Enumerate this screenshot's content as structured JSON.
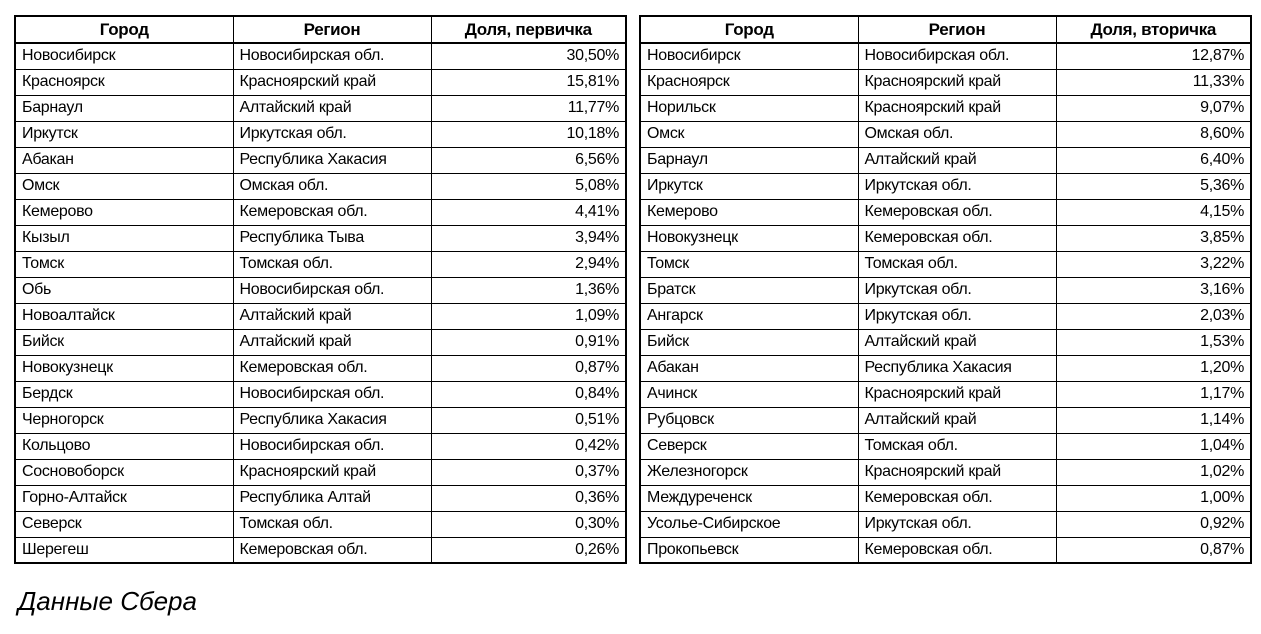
{
  "colors": {
    "background": "#ffffff",
    "text": "#000000",
    "border": "#000000"
  },
  "footer": {
    "source_note": "Данные Сбера"
  },
  "chart_data": [
    {
      "type": "table",
      "title": "Доля, первичка",
      "columns": [
        "Город",
        "Регион",
        "Доля, первичка"
      ],
      "rows": [
        [
          "Новосибирск",
          "Новосибирская обл.",
          "30,50%"
        ],
        [
          "Красноярск",
          "Красноярский край",
          "15,81%"
        ],
        [
          "Барнаул",
          "Алтайский край",
          "11,77%"
        ],
        [
          "Иркутск",
          "Иркутская обл.",
          "10,18%"
        ],
        [
          "Абакан",
          "Республика Хакасия",
          "6,56%"
        ],
        [
          "Омск",
          "Омская обл.",
          "5,08%"
        ],
        [
          "Кемерово",
          "Кемеровская обл.",
          "4,41%"
        ],
        [
          "Кызыл",
          "Республика Тыва",
          "3,94%"
        ],
        [
          "Томск",
          "Томская обл.",
          "2,94%"
        ],
        [
          "Обь",
          "Новосибирская обл.",
          "1,36%"
        ],
        [
          "Новоалтайск",
          "Алтайский край",
          "1,09%"
        ],
        [
          "Бийск",
          "Алтайский край",
          "0,91%"
        ],
        [
          "Новокузнецк",
          "Кемеровская обл.",
          "0,87%"
        ],
        [
          "Бердск",
          "Новосибирская обл.",
          "0,84%"
        ],
        [
          "Черногорск",
          "Республика Хакасия",
          "0,51%"
        ],
        [
          "Кольцово",
          "Новосибирская обл.",
          "0,42%"
        ],
        [
          "Сосновоборск",
          "Красноярский край",
          "0,37%"
        ],
        [
          "Горно-Алтайск",
          "Республика Алтай",
          "0,36%"
        ],
        [
          "Северск",
          "Томская обл.",
          "0,30%"
        ],
        [
          "Шерегеш",
          "Кемеровская обл.",
          "0,26%"
        ]
      ]
    },
    {
      "type": "table",
      "title": "Доля, вторичка",
      "columns": [
        "Город",
        "Регион",
        "Доля, вторичка"
      ],
      "rows": [
        [
          "Новосибирск",
          "Новосибирская обл.",
          "12,87%"
        ],
        [
          "Красноярск",
          "Красноярский край",
          "11,33%"
        ],
        [
          "Норильск",
          "Красноярский край",
          "9,07%"
        ],
        [
          "Омск",
          "Омская обл.",
          "8,60%"
        ],
        [
          "Барнаул",
          "Алтайский край",
          "6,40%"
        ],
        [
          "Иркутск",
          "Иркутская обл.",
          "5,36%"
        ],
        [
          "Кемерово",
          "Кемеровская обл.",
          "4,15%"
        ],
        [
          "Новокузнецк",
          "Кемеровская обл.",
          "3,85%"
        ],
        [
          "Томск",
          "Томская обл.",
          "3,22%"
        ],
        [
          "Братск",
          "Иркутская обл.",
          "3,16%"
        ],
        [
          "Ангарск",
          "Иркутская обл.",
          "2,03%"
        ],
        [
          "Бийск",
          "Алтайский край",
          "1,53%"
        ],
        [
          "Абакан",
          "Республика Хакасия",
          "1,20%"
        ],
        [
          "Ачинск",
          "Красноярский край",
          "1,17%"
        ],
        [
          "Рубцовск",
          "Алтайский край",
          "1,14%"
        ],
        [
          "Северск",
          "Томская обл.",
          "1,04%"
        ],
        [
          "Железногорск",
          "Красноярский край",
          "1,02%"
        ],
        [
          "Междуреченск",
          "Кемеровская обл.",
          "1,00%"
        ],
        [
          "Усолье-Сибирское",
          "Иркутская обл.",
          "0,92%"
        ],
        [
          "Прокопьевск",
          "Кемеровская обл.",
          "0,87%"
        ]
      ]
    }
  ]
}
